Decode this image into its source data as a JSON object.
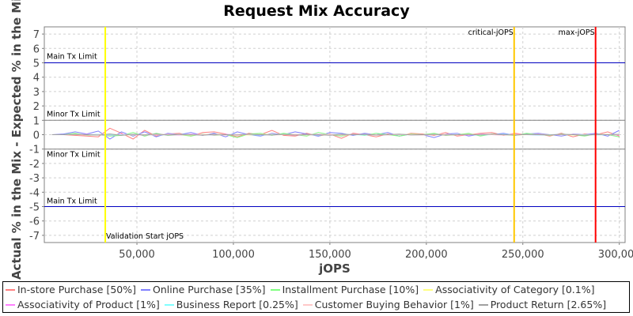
{
  "chart_data": {
    "type": "line",
    "title": "Request Mix Accuracy",
    "xlabel": "jOPS",
    "ylabel": "Actual % in the Mix - Expected % in the Mix",
    "xlim": [
      2000,
      303000
    ],
    "ylim": [
      -7.5,
      7.5
    ],
    "x_ticks": [
      50000,
      100000,
      150000,
      200000,
      250000,
      300000
    ],
    "x_tick_labels": [
      "50,000",
      "100,000",
      "150,000",
      "200,000",
      "250,000",
      "300,000"
    ],
    "y_ticks": [
      7,
      6,
      5,
      4,
      3,
      2,
      1,
      0,
      -1,
      -2,
      -3,
      -4,
      -5,
      -6,
      -7
    ],
    "y_tick_labels": [
      "7",
      "6",
      "5",
      "4",
      "3",
      "2",
      "1",
      "0",
      "-1",
      "-2",
      "-3",
      "-4",
      "-5",
      "-6",
      "-7"
    ],
    "grid": true,
    "legend_position": "bottom",
    "x": [
      6000,
      12000,
      18000,
      24000,
      30000,
      36000,
      42000,
      48000,
      54000,
      60000,
      66000,
      72000,
      78000,
      84000,
      90000,
      96000,
      102000,
      108000,
      114000,
      120000,
      126000,
      132000,
      138000,
      144000,
      150000,
      156000,
      162000,
      168000,
      174000,
      180000,
      186000,
      192000,
      198000,
      204000,
      210000,
      216000,
      222000,
      228000,
      234000,
      240000,
      246000,
      252000,
      258000,
      264000,
      270000,
      276000,
      282000,
      288000,
      294000,
      300000
    ],
    "series": [
      {
        "name": "In-store Purchase [50%]",
        "color": "#ff8080",
        "values": [
          0,
          0,
          -0.05,
          -0.1,
          -0.15,
          0.45,
          0.1,
          -0.3,
          0.3,
          -0.1,
          0.05,
          0.1,
          -0.1,
          0.15,
          0.2,
          0.05,
          -0.15,
          0.1,
          0,
          0.3,
          -0.05,
          -0.1,
          0.1,
          -0.1,
          0.05,
          -0.25,
          0.1,
          0,
          -0.15,
          0.05,
          -0.1,
          0.1,
          0.05,
          -0.05,
          0.15,
          -0.1,
          0,
          0.1,
          0.15,
          -0.05,
          0.1,
          0,
          0.05,
          -0.1,
          0.1,
          -0.15,
          0.05,
          0,
          0.2,
          -0.1
        ]
      },
      {
        "name": "Online Purchase [35%]",
        "color": "#8080ff",
        "values": [
          0,
          0.05,
          0.2,
          0.05,
          0.25,
          -0.3,
          0.2,
          -0.1,
          0.2,
          -0.15,
          0.1,
          0,
          0.15,
          -0.05,
          0.1,
          -0.15,
          0.2,
          0,
          -0.1,
          0.1,
          0,
          0.2,
          0.05,
          -0.1,
          0.15,
          0.1,
          -0.05,
          0.1,
          0,
          0.15,
          -0.1,
          0.05,
          0,
          -0.2,
          0.05,
          0.1,
          -0.1,
          0.05,
          0,
          0.1,
          -0.05,
          0.05,
          0.1,
          0,
          -0.1,
          0.05,
          0,
          0.1,
          -0.1,
          0.3
        ]
      },
      {
        "name": "Installment Purchase [10%]",
        "color": "#80ff80",
        "values": [
          0,
          0,
          0.1,
          -0.05,
          0,
          -0.1,
          -0.05,
          0.15,
          -0.1,
          0.1,
          -0.05,
          0,
          -0.1,
          0.05,
          -0.05,
          0,
          -0.2,
          0.05,
          0.1,
          -0.05,
          0.1,
          0,
          -0.1,
          0.15,
          0,
          -0.1,
          0.05,
          -0.05,
          0.1,
          0,
          -0.1,
          0.05,
          0,
          0.1,
          -0.05,
          0,
          0.1,
          -0.1,
          0.05,
          0,
          -0.05,
          0.1,
          0,
          -0.05,
          0.05,
          0,
          -0.1,
          0.05,
          0,
          -0.15
        ]
      },
      {
        "name": "Associativity of Category [0.1%]",
        "color": "#ffff80",
        "values": [
          0,
          0,
          0,
          0,
          0,
          0.02,
          0,
          -0.02,
          0,
          0.02,
          0,
          0,
          -0.02,
          0,
          0.02,
          0,
          0,
          -0.02,
          0,
          0.02,
          0,
          0,
          0,
          -0.02,
          0,
          0.02,
          0,
          0,
          -0.02,
          0,
          0,
          0.02,
          0,
          0,
          -0.02,
          0,
          0.02,
          0,
          0,
          0,
          -0.02,
          0,
          0.02,
          0,
          0,
          -0.02,
          0,
          0,
          0.02,
          0
        ]
      },
      {
        "name": "Associativity of Product [1%]",
        "color": "#ff80ff",
        "values": [
          0,
          0,
          0,
          0.02,
          0,
          -0.05,
          0.03,
          0,
          -0.03,
          0.02,
          0,
          -0.02,
          0.03,
          0,
          -0.02,
          0.02,
          0,
          0.03,
          -0.02,
          0,
          0.02,
          -0.03,
          0,
          0.02,
          0,
          -0.02,
          0.03,
          0,
          -0.02,
          0,
          0.02,
          0,
          -0.03,
          0.02,
          0,
          0,
          -0.02,
          0.02,
          0,
          -0.02,
          0.03,
          0,
          -0.02,
          0,
          0.02,
          0,
          -0.02,
          0.02,
          0,
          -0.03
        ]
      },
      {
        "name": "Business Report [0.25%]",
        "color": "#80ffff",
        "values": [
          0,
          0,
          0,
          0,
          0.02,
          -0.02,
          0,
          0.02,
          0,
          -0.02,
          0,
          0.02,
          0,
          -0.02,
          0,
          0,
          0.02,
          0,
          -0.02,
          0,
          0.02,
          0,
          0,
          -0.02,
          0,
          0.02,
          0,
          -0.02,
          0,
          0,
          0.02,
          0,
          -0.02,
          0,
          0.02,
          0,
          0,
          -0.02,
          0,
          0.02,
          0,
          0,
          -0.02,
          0,
          0.02,
          0,
          0,
          -0.02,
          0,
          0.02
        ]
      },
      {
        "name": "Customer Buying Behavior [1%]",
        "color": "#ffc8c8",
        "values": [
          0,
          0,
          0,
          -0.03,
          0,
          0.05,
          -0.03,
          0.02,
          0,
          -0.03,
          0.03,
          0,
          -0.02,
          0.03,
          0,
          -0.03,
          0.02,
          0,
          0.03,
          -0.02,
          0,
          0.03,
          -0.02,
          0,
          0.02,
          -0.03,
          0,
          0.03,
          0,
          -0.02,
          0.02,
          0,
          -0.03,
          0,
          0.03,
          -0.02,
          0,
          0.02,
          0,
          -0.03,
          0.02,
          0,
          0.03,
          -0.02,
          0,
          0.02,
          -0.03,
          0,
          0.02,
          0
        ]
      },
      {
        "name": "Product Return [2.65%]",
        "color": "#a0a0a0",
        "values": [
          0,
          0,
          0.03,
          0,
          -0.03,
          0.05,
          -0.05,
          0.03,
          -0.02,
          0.05,
          -0.03,
          0.02,
          0,
          -0.04,
          0.03,
          0,
          -0.03,
          0.04,
          0,
          -0.02,
          0.03,
          -0.03,
          0.02,
          0,
          -0.04,
          0.03,
          0,
          0.02,
          -0.03,
          0,
          0.04,
          -0.02,
          0,
          0.03,
          -0.03,
          0,
          0.02,
          -0.02,
          0.04,
          0,
          -0.03,
          0.02,
          0,
          -0.02,
          0.03,
          0,
          -0.04,
          0.02,
          0,
          0.03
        ]
      }
    ],
    "horizontal_markers": [
      {
        "label": "Main Tx Limit",
        "y": 5,
        "color": "#0000c0"
      },
      {
        "label": "Minor Tx Limit",
        "y": 1,
        "color": "#808080"
      },
      {
        "label": "Minor Tx Limit",
        "y": -1,
        "color": "#808080"
      },
      {
        "label": "Main Tx Limit",
        "y": -5,
        "color": "#0000c0"
      }
    ],
    "vertical_markers": [
      {
        "label": "Validation Start jOPS",
        "x": 33600,
        "color": "#ffff00",
        "label_position": "bottom"
      },
      {
        "label": "critical-jOPS",
        "x": 245500,
        "color": "#ffc800",
        "label_position": "top"
      },
      {
        "label": "max-jOPS",
        "x": 287700,
        "color": "#ff0000",
        "label_position": "top"
      }
    ]
  }
}
